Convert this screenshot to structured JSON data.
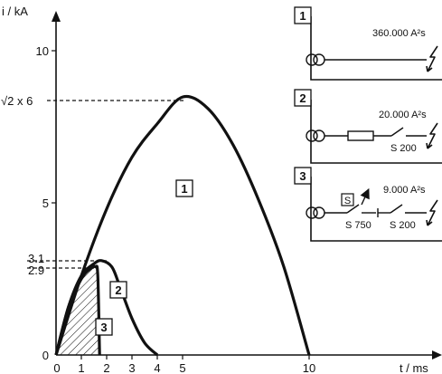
{
  "chart_data": {
    "type": "line",
    "axes": {
      "x_label": "t / ms",
      "y_label": "i / kA",
      "x_ticks": [
        "0",
        "1",
        "2",
        "3",
        "4",
        "5",
        "10"
      ],
      "y_ticks": [
        "0",
        "5",
        "10"
      ],
      "y_marks": [
        "√2 x 6",
        "3.1",
        "2.9"
      ]
    },
    "series": [
      {
        "name": "1",
        "x": [
          0,
          1,
          2,
          3,
          4,
          5,
          6,
          7,
          8,
          9,
          10
        ],
        "y": [
          0,
          2.6,
          4.8,
          6.5,
          7.6,
          8.48,
          8.1,
          6.9,
          5.1,
          2.9,
          0
        ]
      },
      {
        "name": "2",
        "x": [
          0,
          0.5,
          1,
          1.5,
          1.8,
          2.2,
          2.5,
          3,
          3.5,
          4
        ],
        "y": [
          0,
          1.6,
          2.6,
          3.0,
          3.1,
          2.9,
          2.3,
          1.2,
          0.4,
          0
        ]
      },
      {
        "name": "3",
        "x": [
          0,
          0.5,
          1,
          1.3,
          1.55,
          1.65,
          1.72
        ],
        "y": [
          0,
          1.6,
          2.5,
          2.8,
          2.9,
          2.6,
          0
        ]
      }
    ]
  },
  "panels": [
    {
      "num": "1",
      "value": "360.000 A²s"
    },
    {
      "num": "2",
      "value": "20.000 A²s",
      "breaker": "S 200"
    },
    {
      "num": "3",
      "value": "9.000 A²s",
      "selective_label": "S 750",
      "breaker": "S 200",
      "s_box": "S"
    }
  ]
}
